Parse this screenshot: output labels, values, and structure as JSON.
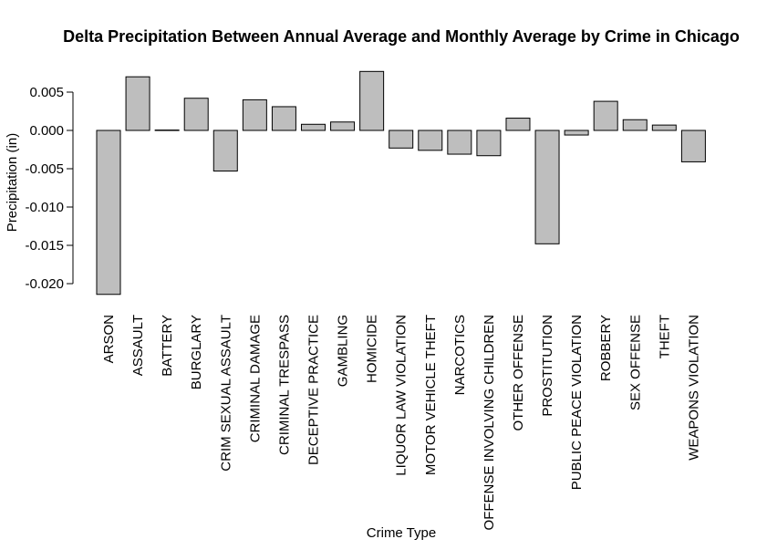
{
  "chart_data": {
    "type": "bar",
    "title": "Delta Precipitation Between Annual Average and Monthly Average by Crime in Chicago",
    "xlabel": "Crime Type",
    "ylabel": "Precipitation (in)",
    "ylim": [
      -0.022,
      0.008
    ],
    "yticks": [
      -0.02,
      -0.015,
      -0.01,
      -0.005,
      0.0,
      0.005
    ],
    "ytick_labels": [
      "-0.020",
      "-0.015",
      "-0.010",
      "-0.005",
      "0.000",
      "0.005"
    ],
    "categories": [
      "ARSON",
      "ASSAULT",
      "BATTERY",
      "BURGLARY",
      "CRIM SEXUAL ASSAULT",
      "CRIMINAL DAMAGE",
      "CRIMINAL TRESPASS",
      "DECEPTIVE PRACTICE",
      "GAMBLING",
      "HOMICIDE",
      "LIQUOR LAW VIOLATION",
      "MOTOR VEHICLE THEFT",
      "NARCOTICS",
      "OFFENSE INVOLVING CHILDREN",
      "OTHER OFFENSE",
      "PROSTITUTION",
      "PUBLIC PEACE VIOLATION",
      "ROBBERY",
      "SEX OFFENSE",
      "THEFT",
      "WEAPONS VIOLATION"
    ],
    "values": [
      -0.0214,
      0.007,
      5e-05,
      0.0042,
      -0.0053,
      0.004,
      0.0031,
      0.0008,
      0.0011,
      0.0077,
      -0.0023,
      -0.0026,
      -0.0031,
      -0.0033,
      0.0016,
      -0.0148,
      -0.0006,
      0.0038,
      0.0014,
      0.0007,
      -0.0041
    ],
    "grid": false,
    "legend": "none"
  }
}
